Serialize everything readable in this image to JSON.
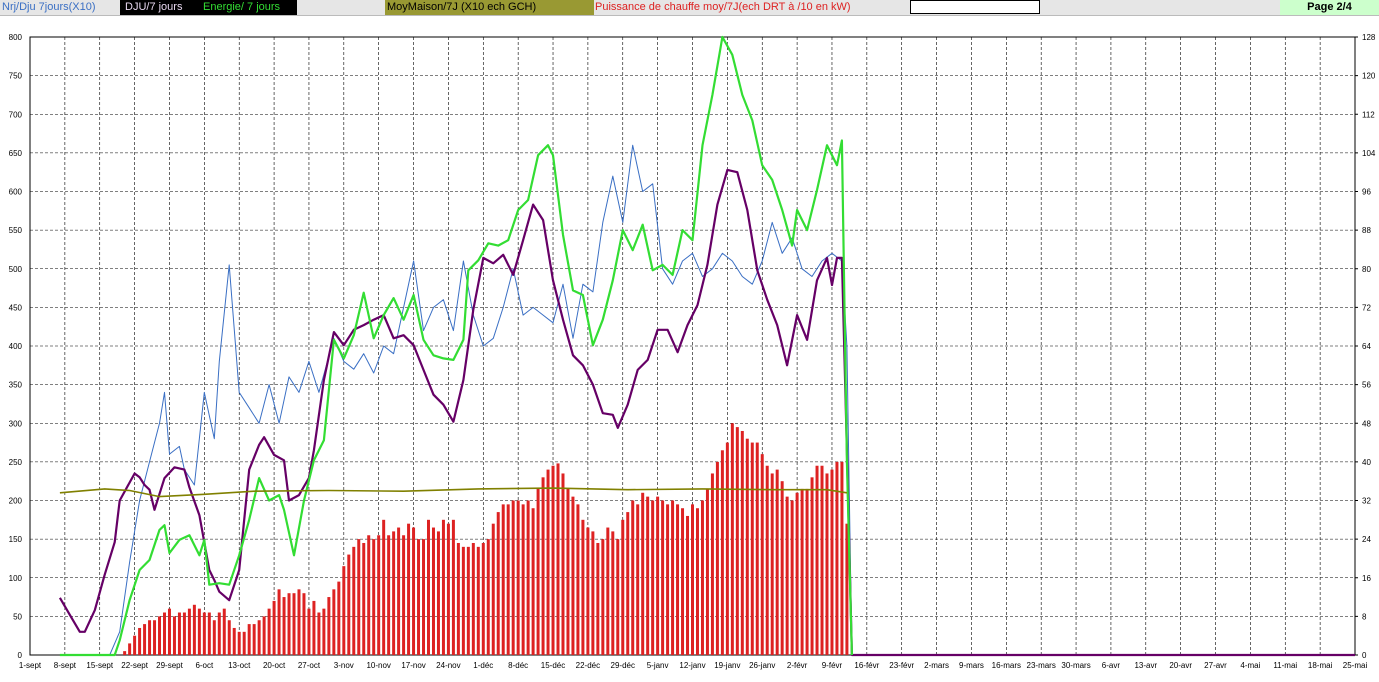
{
  "header": {
    "page": "Page  2/4"
  },
  "chart_data": {
    "type": "combo",
    "xlim": [
      0,
      266
    ],
    "xticks": [
      {
        "value": 0,
        "label": "1-sept"
      },
      {
        "value": 7,
        "label": "8-sept"
      },
      {
        "value": 14,
        "label": "15-sept"
      },
      {
        "value": 21,
        "label": "22-sept"
      },
      {
        "value": 28,
        "label": "29-sept"
      },
      {
        "value": 35,
        "label": "6-oct"
      },
      {
        "value": 42,
        "label": "13-oct"
      },
      {
        "value": 49,
        "label": "20-oct"
      },
      {
        "value": 56,
        "label": "27-oct"
      },
      {
        "value": 63,
        "label": "3-nov"
      },
      {
        "value": 70,
        "label": "10-nov"
      },
      {
        "value": 77,
        "label": "17-nov"
      },
      {
        "value": 84,
        "label": "24-nov"
      },
      {
        "value": 91,
        "label": "1-déc"
      },
      {
        "value": 98,
        "label": "8-déc"
      },
      {
        "value": 105,
        "label": "15-déc"
      },
      {
        "value": 112,
        "label": "22-déc"
      },
      {
        "value": 119,
        "label": "29-déc"
      },
      {
        "value": 126,
        "label": "5-janv"
      },
      {
        "value": 133,
        "label": "12-janv"
      },
      {
        "value": 140,
        "label": "19-janv"
      },
      {
        "value": 147,
        "label": "26-janv"
      },
      {
        "value": 154,
        "label": "2-févr"
      },
      {
        "value": 161,
        "label": "9-févr"
      },
      {
        "value": 168,
        "label": "16-févr"
      },
      {
        "value": 175,
        "label": "23-févr"
      },
      {
        "value": 182,
        "label": "2-mars"
      },
      {
        "value": 189,
        "label": "9-mars"
      },
      {
        "value": 196,
        "label": "16-mars"
      },
      {
        "value": 203,
        "label": "23-mars"
      },
      {
        "value": 210,
        "label": "30-mars"
      },
      {
        "value": 217,
        "label": "6-avr"
      },
      {
        "value": 224,
        "label": "13-avr"
      },
      {
        "value": 231,
        "label": "20-avr"
      },
      {
        "value": 238,
        "label": "27-avr"
      },
      {
        "value": 245,
        "label": "4-mai"
      },
      {
        "value": 252,
        "label": "11-mai"
      },
      {
        "value": 259,
        "label": "18-mai"
      },
      {
        "value": 266,
        "label": "25-mai"
      }
    ],
    "ylim": [
      0,
      800
    ],
    "yticks": [
      0,
      50,
      100,
      150,
      200,
      250,
      300,
      350,
      400,
      450,
      500,
      550,
      600,
      650,
      700,
      750,
      800
    ],
    "y2lim": [
      0,
      128
    ],
    "y2ticks": [
      0,
      8,
      16,
      24,
      32,
      40,
      48,
      56,
      64,
      72,
      80,
      88,
      96,
      104,
      112,
      120,
      128
    ],
    "grid": true,
    "series": [
      {
        "name": "Nrj/Dju 7jours(X10)",
        "type": "line",
        "color": "#3a6fc4",
        "x": [
          16,
          18,
          20,
          22,
          24,
          26,
          27,
          28,
          30,
          31,
          33,
          35,
          37,
          38,
          40,
          42,
          44,
          46,
          48,
          50,
          52,
          54,
          56,
          58,
          61,
          63,
          65,
          67,
          69,
          71,
          73,
          75,
          77,
          79,
          81,
          83,
          85,
          87,
          89,
          91,
          93,
          95,
          97,
          99,
          101,
          103,
          105,
          107,
          109,
          111,
          113,
          115,
          117,
          119,
          121,
          123,
          125,
          127,
          129,
          131,
          133,
          135,
          137,
          139,
          141,
          143,
          145,
          147,
          149,
          151,
          153,
          155,
          157,
          159,
          161,
          163,
          164,
          165
        ],
        "values": [
          0,
          30,
          120,
          200,
          250,
          300,
          340,
          260,
          270,
          240,
          220,
          340,
          280,
          380,
          505,
          340,
          320,
          300,
          350,
          300,
          360,
          340,
          380,
          340,
          410,
          380,
          370,
          390,
          365,
          400,
          390,
          450,
          510,
          420,
          450,
          460,
          420,
          510,
          440,
          400,
          410,
          450,
          500,
          440,
          450,
          440,
          430,
          480,
          410,
          480,
          470,
          560,
          620,
          560,
          660,
          600,
          610,
          500,
          480,
          510,
          520,
          490,
          500,
          520,
          510,
          490,
          480,
          510,
          560,
          520,
          540,
          500,
          490,
          510,
          520,
          510,
          400,
          0
        ]
      },
      {
        "name": "DJU/7 jours",
        "type": "line",
        "color": "#660066",
        "x": [
          6,
          8,
          10,
          11,
          13,
          15,
          17,
          18,
          21,
          22,
          23,
          24,
          25,
          27,
          29,
          31,
          32,
          34,
          36,
          37,
          38,
          40,
          42,
          44,
          46,
          47,
          49,
          51,
          52,
          54,
          56,
          57,
          59,
          61,
          63,
          65,
          67,
          69,
          71,
          73,
          75,
          77,
          79,
          81,
          83,
          85,
          87,
          89,
          91,
          93,
          95,
          97,
          99,
          101,
          103,
          105,
          107,
          109,
          111,
          113,
          115,
          117,
          118,
          120,
          122,
          124,
          126,
          128,
          130,
          132,
          134,
          136,
          138,
          140,
          142,
          144,
          146,
          148,
          150,
          152,
          154,
          156,
          158,
          160,
          161,
          162,
          163,
          164,
          165,
          266
        ],
        "values": [
          74,
          52,
          30,
          30,
          58,
          104,
          146,
          200,
          235,
          230,
          220,
          214,
          188,
          229,
          243,
          240,
          217,
          181,
          110,
          97,
          82,
          71,
          110,
          240,
          272,
          282,
          259,
          252,
          200,
          207,
          229,
          265,
          356,
          418,
          401,
          421,
          427,
          434,
          440,
          410,
          414,
          401,
          369,
          337,
          324,
          302,
          356,
          447,
          514,
          507,
          518,
          492,
          537,
          583,
          563,
          485,
          434,
          388,
          375,
          350,
          313,
          311,
          294,
          324,
          369,
          382,
          421,
          421,
          392,
          427,
          453,
          505,
          583,
          628,
          625,
          576,
          498,
          460,
          427,
          375,
          440,
          408,
          485,
          514,
          479,
          514,
          514,
          265,
          0,
          0
        ]
      },
      {
        "name": "Energie/ 7 jours",
        "type": "line",
        "color": "#33dd33",
        "x": [
          6,
          17,
          18,
          20,
          22,
          24,
          26,
          27,
          28,
          30,
          32,
          34,
          35,
          36,
          38,
          40,
          42,
          44,
          46,
          48,
          50,
          51,
          53,
          55,
          57,
          59,
          61,
          63,
          65,
          67,
          69,
          71,
          73,
          75,
          77,
          79,
          81,
          83,
          85,
          87,
          88,
          90,
          92,
          94,
          96,
          98,
          100,
          102,
          104,
          105,
          107,
          109,
          111,
          113,
          115,
          117,
          119,
          121,
          123,
          125,
          127,
          129,
          131,
          133,
          135,
          137,
          139,
          141,
          143,
          145,
          147,
          149,
          151,
          153,
          154,
          156,
          158,
          160,
          162,
          163,
          164,
          165
        ],
        "values": [
          0,
          0,
          19,
          71,
          110,
          123,
          162,
          168,
          132,
          149,
          155,
          129,
          149,
          91,
          93,
          91,
          129,
          175,
          229,
          200,
          207,
          188,
          129,
          200,
          252,
          278,
          408,
          384,
          414,
          469,
          410,
          440,
          462,
          434,
          466,
          408,
          388,
          384,
          382,
          408,
          498,
          511,
          533,
          530,
          537,
          576,
          589,
          647,
          660,
          647,
          544,
          472,
          466,
          401,
          434,
          485,
          550,
          524,
          557,
          498,
          505,
          492,
          550,
          537,
          660,
          725,
          800,
          777,
          725,
          692,
          634,
          615,
          576,
          530,
          576,
          550,
          602,
          660,
          634,
          666,
          250,
          0
        ]
      },
      {
        "name": "MoyMaison/7J (X10 ech GCH)",
        "type": "line",
        "color": "#808000",
        "x": [
          6,
          15,
          20,
          26,
          35,
          45,
          60,
          75,
          90,
          105,
          120,
          135,
          150,
          160,
          164
        ],
        "values": [
          210,
          215,
          213,
          205,
          208,
          212,
          213,
          212,
          215,
          216,
          214,
          215,
          214,
          214,
          210
        ]
      },
      {
        "name": "Puissance de chauffe moy/7J(ech DRT à /10 en kW)",
        "type": "bar",
        "color": "#dd2222",
        "x": [
          19,
          20,
          21,
          22,
          23,
          24,
          25,
          26,
          27,
          28,
          29,
          30,
          31,
          32,
          33,
          34,
          35,
          36,
          37,
          38,
          39,
          40,
          41,
          42,
          43,
          44,
          45,
          46,
          47,
          48,
          49,
          50,
          51,
          52,
          53,
          54,
          55,
          56,
          57,
          58,
          59,
          60,
          61,
          62,
          63,
          64,
          65,
          66,
          67,
          68,
          69,
          70,
          71,
          72,
          73,
          74,
          75,
          76,
          77,
          78,
          79,
          80,
          81,
          82,
          83,
          84,
          85,
          86,
          87,
          88,
          89,
          90,
          91,
          92,
          93,
          94,
          95,
          96,
          97,
          98,
          99,
          100,
          101,
          102,
          103,
          104,
          105,
          106,
          107,
          108,
          109,
          110,
          111,
          112,
          113,
          114,
          115,
          116,
          117,
          118,
          119,
          120,
          121,
          122,
          123,
          124,
          125,
          126,
          127,
          128,
          129,
          130,
          131,
          132,
          133,
          134,
          135,
          136,
          137,
          138,
          139,
          140,
          141,
          142,
          143,
          144,
          145,
          146,
          147,
          148,
          149,
          150,
          151,
          152,
          153,
          154,
          155,
          156,
          157,
          158,
          159,
          160,
          161,
          162,
          163,
          164
        ],
        "values": [
          5,
          15,
          25,
          35,
          40,
          45,
          45,
          50,
          55,
          60,
          50,
          55,
          55,
          60,
          65,
          60,
          55,
          55,
          45,
          55,
          60,
          45,
          35,
          30,
          30,
          40,
          40,
          45,
          50,
          60,
          70,
          85,
          75,
          80,
          80,
          85,
          80,
          60,
          70,
          55,
          60,
          75,
          85,
          95,
          115,
          130,
          140,
          150,
          145,
          155,
          150,
          155,
          175,
          155,
          160,
          165,
          155,
          170,
          165,
          150,
          150,
          175,
          165,
          160,
          175,
          170,
          175,
          145,
          140,
          140,
          145,
          140,
          145,
          150,
          170,
          185,
          195,
          195,
          200,
          200,
          195,
          200,
          190,
          215,
          230,
          240,
          245,
          248,
          235,
          215,
          205,
          195,
          175,
          165,
          160,
          145,
          150,
          165,
          160,
          150,
          175,
          185,
          200,
          195,
          210,
          205,
          200,
          205,
          200,
          195,
          200,
          195,
          190,
          180,
          195,
          190,
          200,
          215,
          235,
          250,
          265,
          275,
          300,
          295,
          290,
          280,
          275,
          275,
          260,
          245,
          235,
          240,
          225,
          205,
          200,
          210,
          215,
          215,
          230,
          245,
          245,
          235,
          240,
          250,
          250,
          170
        ]
      }
    ]
  }
}
